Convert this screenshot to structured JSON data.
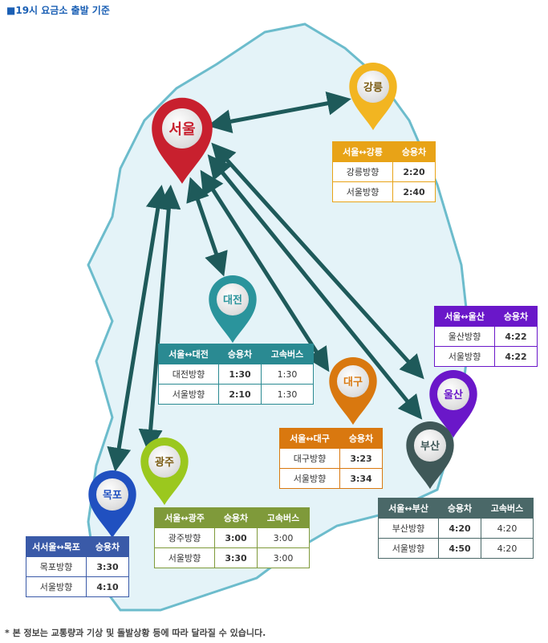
{
  "title": "■19시 요금소 출발 기준",
  "note": "* 본 정보는 교통량과 기상 및 돌발상황 등에 따라 달라질 수 있습니다.",
  "pins": [
    {
      "id": "seoul",
      "label": "서울",
      "color": "#c8202e"
    },
    {
      "id": "gangneung",
      "label": "강릉",
      "color": "#f2b521"
    },
    {
      "id": "daejeon",
      "label": "대전",
      "color": "#2a949c"
    },
    {
      "id": "daegu",
      "label": "대구",
      "color": "#d9780f"
    },
    {
      "id": "ulsan",
      "label": "울산",
      "color": "#6a17c9"
    },
    {
      "id": "busan",
      "label": "부산",
      "color": "#3f5858"
    },
    {
      "id": "gwangju",
      "label": "광주",
      "color": "#9bc81e"
    },
    {
      "id": "mokpo",
      "label": "목포",
      "color": "#2050c0"
    }
  ],
  "tables": [
    {
      "id": "gangneung",
      "color": "#e8a317",
      "headers": [
        "서울↔강릉",
        "승용차"
      ],
      "rows": [
        [
          "강릉방향",
          "2:20"
        ],
        [
          "서울방향",
          "2:40"
        ]
      ]
    },
    {
      "id": "ulsan",
      "color": "#6a17c9",
      "headers": [
        "서울↔울산",
        "승용차"
      ],
      "rows": [
        [
          "울산방향",
          "4:22"
        ],
        [
          "서울방향",
          "4:22"
        ]
      ]
    },
    {
      "id": "daejeon",
      "color": "#2a8a92",
      "headers": [
        "서울↔대전",
        "승용차",
        "고속버스"
      ],
      "rows": [
        [
          "대전방향",
          "1:30",
          "1:30"
        ],
        [
          "서울방향",
          "2:10",
          "1:30"
        ]
      ]
    },
    {
      "id": "daegu",
      "color": "#d9780f",
      "headers": [
        "서울↔대구",
        "승용차"
      ],
      "rows": [
        [
          "대구방향",
          "3:23"
        ],
        [
          "서울방향",
          "3:34"
        ]
      ]
    },
    {
      "id": "busan",
      "color": "#4a6868",
      "headers": [
        "서울↔부산",
        "승용차",
        "고속버스"
      ],
      "rows": [
        [
          "부산방향",
          "4:20",
          "4:20"
        ],
        [
          "서울방향",
          "4:50",
          "4:20"
        ]
      ]
    },
    {
      "id": "gwangju",
      "color": "#7f9a3a",
      "headers": [
        "서울↔광주",
        "승용차",
        "고속버스"
      ],
      "rows": [
        [
          "광주방향",
          "3:00",
          "3:00"
        ],
        [
          "서울방향",
          "3:30",
          "3:00"
        ]
      ]
    },
    {
      "id": "mokpo",
      "color": "#3a5aa8",
      "headers": [
        "서서울↔목포",
        "승용차"
      ],
      "rows": [
        [
          "목포방향",
          "3:30"
        ],
        [
          "서울방향",
          "4:10"
        ]
      ]
    }
  ]
}
